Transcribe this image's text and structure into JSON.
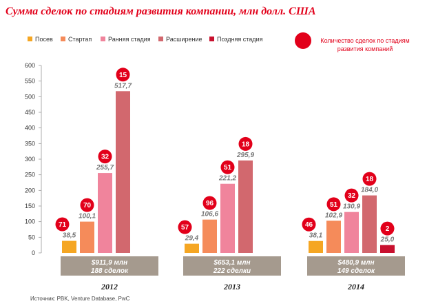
{
  "chart_data": {
    "type": "bar",
    "title": "Сумма сделок по стадиям развития компании, млн долл. США",
    "ylim": [
      0,
      600
    ],
    "yticks": [
      "600",
      "550",
      "500",
      "450",
      "400",
      "350",
      "300",
      "250",
      "200",
      "150",
      "100",
      "50",
      "0"
    ],
    "series": [
      {
        "name": "Посев",
        "color": "#f5a623"
      },
      {
        "name": "Стартап",
        "color": "#f58b5a"
      },
      {
        "name": "Ранняя стадия",
        "color": "#f0849c"
      },
      {
        "name": "Расширение",
        "color": "#d2686e"
      },
      {
        "name": "Поздняя стадия",
        "color": "#c8102e"
      }
    ],
    "groups": [
      {
        "year": "2012",
        "values": [
          38.5,
          100.1,
          255.7,
          517.7,
          null
        ],
        "labels": [
          "38,5",
          "100,1",
          "255,7",
          "517,7",
          ""
        ],
        "deals": [
          "71",
          "70",
          "32",
          "15",
          ""
        ],
        "total_line1": "$911,9 млн",
        "total_line2": "188 сделок"
      },
      {
        "year": "2013",
        "values": [
          29.4,
          106.6,
          221.2,
          295.9,
          null
        ],
        "labels": [
          "29,4",
          "106,6",
          "221,2",
          "295,9",
          ""
        ],
        "deals": [
          "57",
          "96",
          "51",
          "18",
          ""
        ],
        "total_line1": "$653,1 млн",
        "total_line2": "222 сделки"
      },
      {
        "year": "2014",
        "values": [
          38.1,
          102.9,
          130.9,
          184.0,
          25.0
        ],
        "labels": [
          "38,1",
          "102,9",
          "130,9",
          "184,0",
          "25,0"
        ],
        "deals": [
          "46",
          "51",
          "32",
          "18",
          "2"
        ],
        "total_line1": "$480,9 млн",
        "total_line2": "149 сделок"
      }
    ],
    "total_box_color": "#a59a8e",
    "deal_bubble_color": "#e2001a",
    "deal_note": "Количество сделок по стадиям развития компаний",
    "source": "Источник: PBK, Venture Database, PwC"
  }
}
